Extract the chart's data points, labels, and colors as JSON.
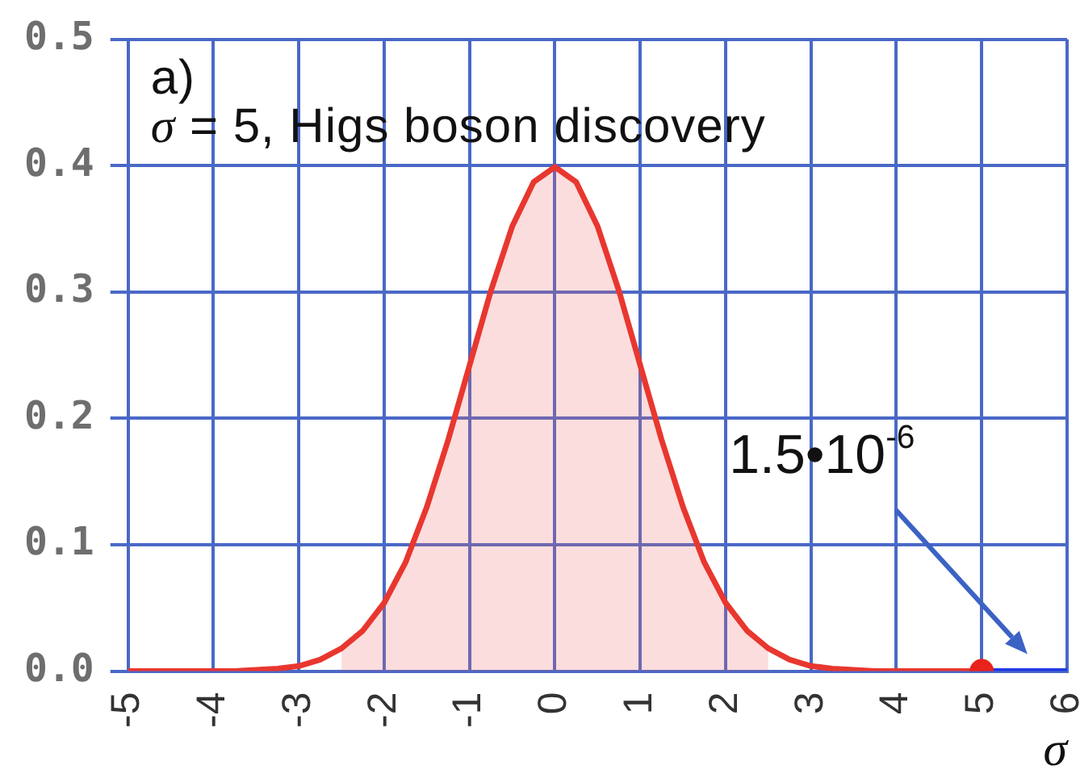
{
  "chart_data": {
    "type": "line",
    "xlabel": "σ",
    "annotations": [
      "a)",
      "σ = 5, Higs boson discovery",
      "1.5•10$^{-6}$"
    ],
    "series": [
      {
        "type": "area",
        "color": "#ef6b6b",
        "x": [
          -2.5,
          -2.25,
          -2,
          -1.75,
          -1.5,
          -1.25,
          -1,
          -0.75,
          -0.5,
          -0.25,
          0,
          0.25,
          0.5,
          0.75,
          1,
          1.25,
          1.5,
          1.75,
          2,
          2.25,
          2.5
        ],
        "values": [
          0.018,
          0.032,
          0.054,
          0.086,
          0.13,
          0.183,
          0.242,
          0.301,
          0.352,
          0.387,
          0.399,
          0.387,
          0.352,
          0.301,
          0.242,
          0.183,
          0.13,
          0.086,
          0.054,
          0.032,
          0.018
        ]
      },
      {
        "type": "line",
        "color": "#e8372f",
        "x": [
          -5,
          -4.75,
          -4.5,
          -4.25,
          -4,
          -3.75,
          -3.5,
          -3.25,
          -3,
          -2.75,
          -2.5,
          -2.25,
          -2,
          -1.75,
          -1.5,
          -1.25,
          -1,
          -0.75,
          -0.5,
          -0.25,
          0,
          0.25,
          0.5,
          0.75,
          1,
          1.25,
          1.5,
          1.75,
          2,
          2.25,
          2.5,
          2.75,
          3,
          3.25,
          3.5,
          3.75,
          4,
          4.25,
          4.5,
          4.75,
          5
        ],
        "values": [
          0,
          0,
          0,
          0,
          0,
          0,
          0.001,
          0.002,
          0.004,
          0.009,
          0.018,
          0.032,
          0.054,
          0.086,
          0.13,
          0.183,
          0.242,
          0.301,
          0.352,
          0.387,
          0.399,
          0.387,
          0.352,
          0.301,
          0.242,
          0.183,
          0.13,
          0.086,
          0.054,
          0.032,
          0.018,
          0.009,
          0.004,
          0.002,
          0.001,
          0,
          0,
          0,
          0,
          0,
          0
        ]
      },
      {
        "type": "line",
        "color": "#1f3ae6",
        "x": [
          5,
          6
        ],
        "values": [
          0,
          0
        ]
      },
      {
        "type": "scatter",
        "color": "#e8231c",
        "marker": "circle",
        "x": [
          5
        ],
        "values": [
          0
        ]
      }
    ],
    "xlim": [
      -5,
      6
    ],
    "xticks": [
      -5,
      -4,
      -3,
      -2,
      -1,
      0,
      1,
      2,
      3,
      4,
      5,
      6
    ],
    "ylim": [
      0,
      0.5
    ],
    "yticks": [
      {
        "value": 0,
        "label": "0.0"
      },
      0.1,
      0.2,
      0.3,
      0.4,
      0.5
    ],
    "grid": true,
    "legend": false,
    "marker": "none",
    "line_style": "solid"
  }
}
